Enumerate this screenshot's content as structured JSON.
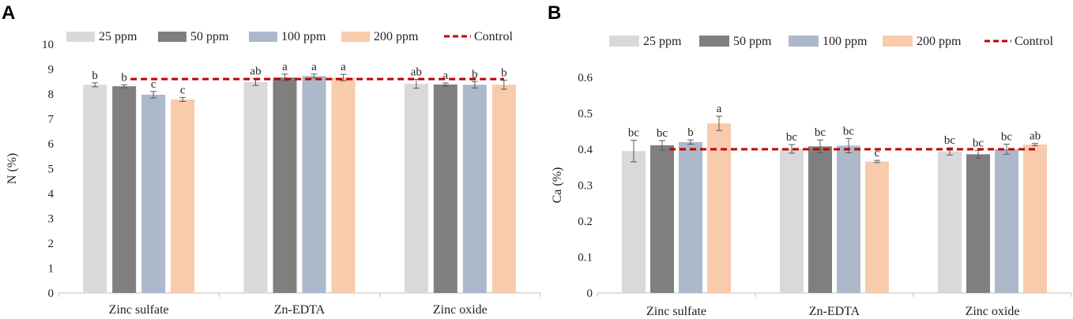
{
  "colors": {
    "series": [
      "#d9d9d9",
      "#7f7f7f",
      "#acb9ca",
      "#f8cbad"
    ],
    "control": "#c00000",
    "axis": "#bfbfbf",
    "error": "#595959"
  },
  "chart_data": [
    {
      "type": "bar",
      "panel": "A",
      "ylabel": "N (%)",
      "ylim": [
        0,
        10
      ],
      "yticks": [
        0,
        1,
        2,
        3,
        4,
        5,
        6,
        7,
        8,
        9,
        10
      ],
      "ytick_labels": [
        "0",
        "1",
        "2",
        "3",
        "4",
        "5",
        "6",
        "7",
        "8",
        "9",
        "10"
      ],
      "categories": [
        "Zinc sulfate",
        "Zn-EDTA",
        "Zinc oxide"
      ],
      "series": [
        {
          "name": "25 ppm",
          "values": [
            8.37,
            8.48,
            8.41
          ],
          "errors": [
            0.08,
            0.14,
            0.18
          ],
          "labels": [
            "b",
            "ab",
            "ab"
          ]
        },
        {
          "name": "50 ppm",
          "values": [
            8.31,
            8.66,
            8.38
          ],
          "errors": [
            0.06,
            0.14,
            0.06
          ],
          "labels": [
            "b",
            "a",
            "a"
          ]
        },
        {
          "name": "100 ppm",
          "values": [
            7.97,
            8.72,
            8.37
          ],
          "errors": [
            0.13,
            0.08,
            0.13
          ],
          "labels": [
            "c",
            "a",
            "b"
          ]
        },
        {
          "name": "200 ppm",
          "values": [
            7.78,
            8.66,
            8.37
          ],
          "errors": [
            0.08,
            0.13,
            0.18
          ],
          "labels": [
            "c",
            "a",
            "b"
          ]
        }
      ],
      "control": {
        "name": "Control",
        "value": 8.6
      },
      "legend": [
        "25 ppm",
        "50 ppm",
        "100 ppm",
        "200 ppm",
        "Control"
      ]
    },
    {
      "type": "bar",
      "panel": "B",
      "ylabel": "Ca (%)",
      "ylim": [
        0,
        0.6
      ],
      "yticks": [
        0,
        0.1,
        0.2,
        0.3,
        0.4,
        0.5,
        0.6
      ],
      "ytick_labels": [
        "0",
        "0.1",
        "0.2",
        "0.3",
        "0.4",
        "0.5",
        "0.6"
      ],
      "categories": [
        "Zinc sulfate",
        "Zn-EDTA",
        "Zinc oxide"
      ],
      "series": [
        {
          "name": "25 ppm",
          "values": [
            0.395,
            0.401,
            0.394
          ],
          "errors": [
            0.03,
            0.012,
            0.01
          ],
          "labels": [
            "bc",
            "bc",
            "bc"
          ]
        },
        {
          "name": "50 ppm",
          "values": [
            0.411,
            0.408,
            0.386
          ],
          "errors": [
            0.013,
            0.018,
            0.011
          ],
          "labels": [
            "bc",
            "bc",
            "bc"
          ]
        },
        {
          "name": "100 ppm",
          "values": [
            0.42,
            0.41,
            0.4
          ],
          "errors": [
            0.006,
            0.02,
            0.014
          ],
          "labels": [
            "b",
            "bc",
            "bc"
          ]
        },
        {
          "name": "200 ppm",
          "values": [
            0.472,
            0.366,
            0.413
          ],
          "errors": [
            0.02,
            0.003,
            0.003
          ],
          "labels": [
            "a",
            "c",
            "ab"
          ]
        }
      ],
      "control": {
        "name": "Control",
        "value": 0.4
      },
      "legend": [
        "25 ppm",
        "50 ppm",
        "100 ppm",
        "200 ppm",
        "Control"
      ]
    }
  ]
}
